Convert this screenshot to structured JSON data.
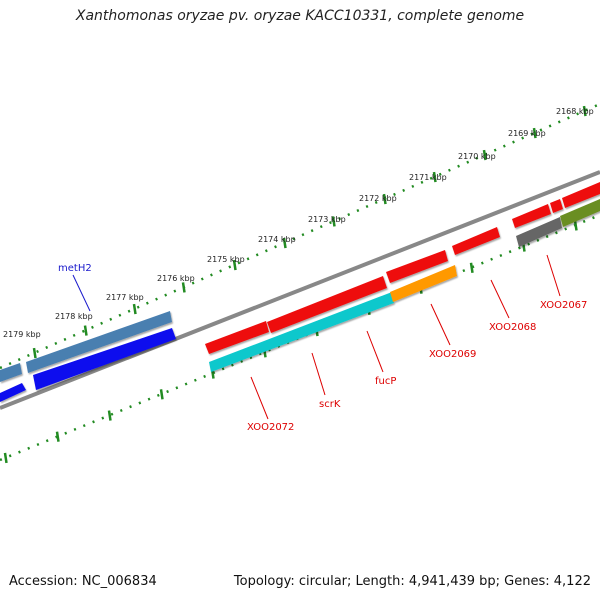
{
  "header": {
    "title": "Xanthomonas oryzae pv. oryzae KACC10331, complete genome"
  },
  "footer": {
    "accession": "Accession: NC_006834",
    "summary": "Topology: circular; Length: 4,941,439 bp; Genes: 4,122"
  },
  "ruler": {
    "labels": [
      "2168 kbp",
      "2169 kbp",
      "2170 kbp",
      "2171 kbp",
      "2172 kbp",
      "2173 kbp",
      "2174 kbp",
      "2175 kbp",
      "2176 kbp",
      "2177 kbp",
      "2178 kbp",
      "2179 kbp"
    ]
  },
  "gene_labels": {
    "metH2": "metH2",
    "XOO2067": "XOO2067",
    "XOO2068": "XOO2068",
    "XOO2069": "XOO2069",
    "fucP": "fucP",
    "scrK": "scrK",
    "XOO2072": "XOO2072"
  },
  "colors": {
    "backbone": "#888888",
    "ruler": "#228b22",
    "red_gene": "#ee1111",
    "steel_gene": "#4a7fb0",
    "blue_gene": "#1010ee",
    "cyan_gene": "#10c8cc",
    "orange_gene": "#ff9900",
    "gray_gene": "#666666",
    "olive_gene": "#6b8e23",
    "label_red": "#dd0000",
    "label_blue": "#1a1acc"
  }
}
